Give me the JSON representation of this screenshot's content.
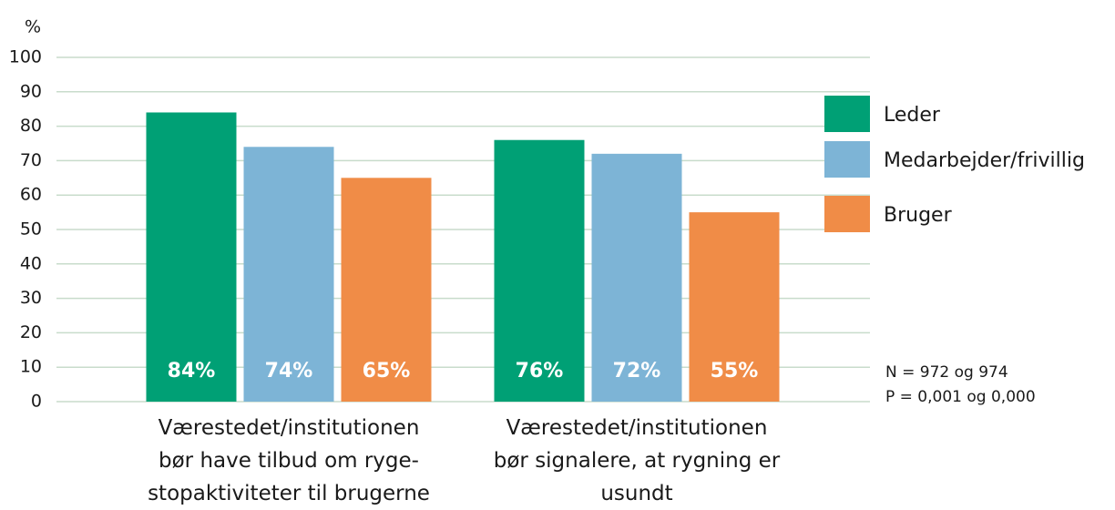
{
  "chart_data": {
    "type": "bar",
    "y_label": "%",
    "categories": [
      "Værestedet/institutionen\nbør have tilbud om ryge-\nstopaktiviteter til brugerne",
      "Værestedet/institutionen\nbør signalere, at rygning er\nusundt"
    ],
    "series": [
      {
        "name": "Leder",
        "color": "#00a075",
        "values": [
          84,
          76
        ],
        "value_labels": [
          "84%",
          "76%"
        ]
      },
      {
        "name": "Medarbejder/frivillig",
        "color": "#7db4d6",
        "values": [
          74,
          72
        ],
        "value_labels": [
          "74%",
          "72%"
        ]
      },
      {
        "name": "Bruger",
        "color": "#f08c47",
        "values": [
          65,
          55
        ],
        "value_labels": [
          "65%",
          "55%"
        ]
      }
    ],
    "ylim": [
      0,
      100
    ],
    "yticks": [
      0,
      10,
      20,
      30,
      40,
      50,
      60,
      70,
      80,
      90,
      100
    ],
    "grid": true,
    "legend": "right",
    "annotations": [
      "N = 972 og 974",
      "P = 0,001 og 0,000"
    ]
  }
}
